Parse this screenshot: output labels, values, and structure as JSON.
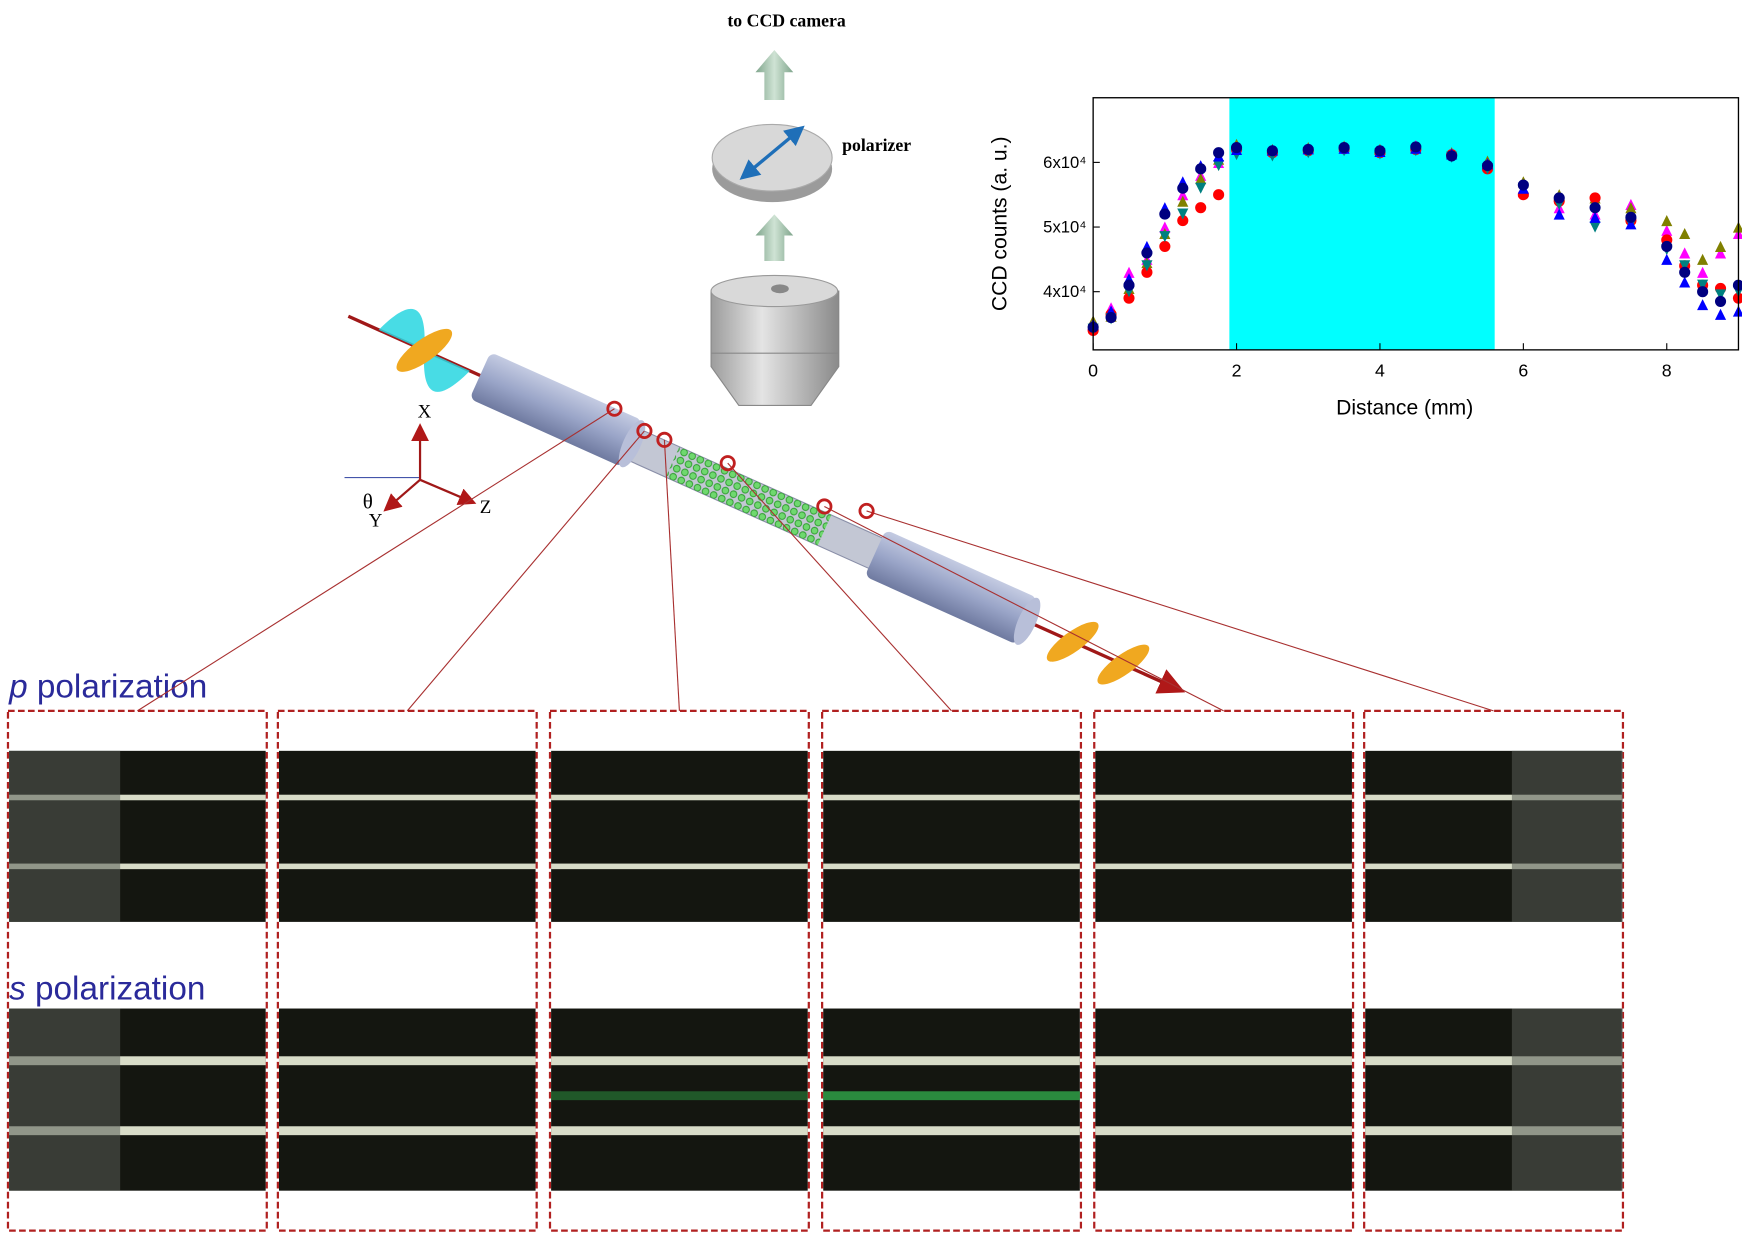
{
  "diagram": {
    "camera_label": "to CCD camera",
    "polarizer_label": "polarizer",
    "axes": {
      "x": "X",
      "y": "Y",
      "z": "Z",
      "angle": "θ"
    },
    "p_label": {
      "symbol": "p",
      "text": "polarization"
    },
    "s_label": {
      "symbol": "s",
      "text": "polarization"
    }
  },
  "chart_data": {
    "type": "scatter",
    "xlabel": "Distance (mm)",
    "ylabel": "CCD counts (a. u.)",
    "xlim": [
      0,
      9
    ],
    "ylim": [
      31000,
      70000
    ],
    "xticks": [
      0,
      2,
      4,
      6,
      8
    ],
    "yticks": [
      {
        "value": 40000,
        "label": "4x10⁴"
      },
      {
        "value": 50000,
        "label": "5x10⁴"
      },
      {
        "value": 60000,
        "label": "6x10⁴"
      }
    ],
    "highlight": {
      "range": [
        1.9,
        5.6
      ],
      "color": "#00ffff"
    },
    "x": [
      0,
      0.25,
      0.5,
      0.75,
      1,
      1.25,
      1.5,
      1.75,
      2,
      2.5,
      3,
      3.5,
      4,
      4.5,
      5,
      5.5,
      6,
      6.5,
      7,
      7.5,
      8,
      8.25,
      8.5,
      8.75,
      9
    ],
    "series": [
      {
        "color": "#ff00ff",
        "marker": "triangle",
        "values": [
          34800,
          37500,
          43000,
          45000,
          50000,
          55000,
          58000,
          60000,
          62500,
          61900,
          62200,
          62500,
          62000,
          62600,
          61500,
          60000,
          55500,
          53000,
          52000,
          53500,
          49500,
          46000,
          43000,
          46000,
          49000
        ]
      },
      {
        "color": "#808000",
        "marker": "triangle",
        "values": [
          35500,
          36200,
          40500,
          44500,
          49000,
          54000,
          57500,
          60500,
          62800,
          62000,
          62300,
          62500,
          62000,
          62300,
          61500,
          60200,
          57000,
          55000,
          54500,
          53000,
          51000,
          49000,
          45000,
          47000,
          50000
        ]
      },
      {
        "color": "#ff0000",
        "marker": "circle",
        "values": [
          34000,
          36500,
          39000,
          43000,
          47000,
          51000,
          53000,
          55000,
          62000,
          61500,
          61800,
          62100,
          61500,
          62000,
          61200,
          59000,
          55000,
          54000,
          54500,
          51000,
          48000,
          44000,
          41000,
          40500,
          39000
        ]
      },
      {
        "color": "#008080",
        "marker": "triangle-down",
        "values": [
          34200,
          35800,
          40000,
          44000,
          48500,
          52000,
          56000,
          59500,
          61200,
          61000,
          61500,
          61800,
          61300,
          61800,
          60800,
          59000,
          56000,
          53500,
          50000,
          50500,
          46500,
          44000,
          41000,
          39500,
          40000
        ]
      },
      {
        "color": "#0000ff",
        "marker": "triangle",
        "values": [
          35000,
          37000,
          42000,
          47000,
          53000,
          57000,
          59500,
          61000,
          62000,
          61900,
          62100,
          62200,
          61700,
          62200,
          61300,
          59800,
          56000,
          52000,
          51500,
          50500,
          45000,
          41500,
          38000,
          36500,
          37000
        ]
      },
      {
        "color": "#000080",
        "marker": "circle",
        "values": [
          34500,
          36000,
          41000,
          46000,
          52000,
          56000,
          59000,
          61500,
          62300,
          61800,
          62000,
          62300,
          61800,
          62400,
          61000,
          59500,
          56500,
          54500,
          53000,
          51500,
          47000,
          43000,
          40000,
          38500,
          41000
        ]
      }
    ]
  }
}
